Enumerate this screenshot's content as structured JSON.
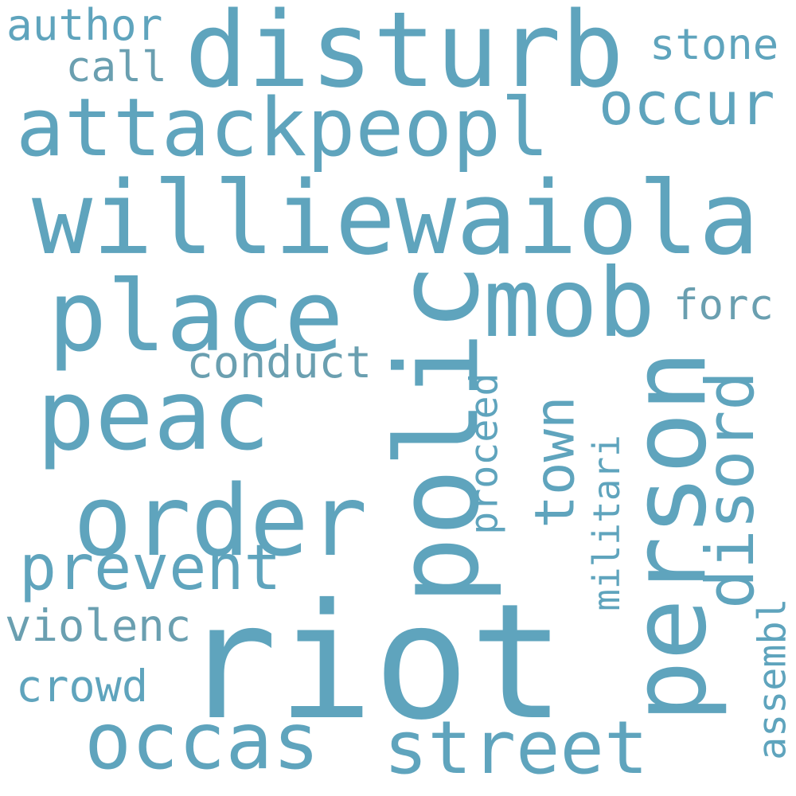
{
  "palette": {
    "primary": "#5fa4bd",
    "secondary": "#6a9fb0",
    "background": "#ffffff"
  },
  "words": [
    {
      "text": "riot",
      "orientation": "horizontal",
      "color": "#5fa4bd"
    },
    {
      "text": "williewaiola",
      "orientation": "horizontal",
      "color": "#5fa4bd"
    },
    {
      "text": "disturb",
      "orientation": "horizontal",
      "color": "#5fa4bd"
    },
    {
      "text": "polic",
      "orientation": "vertical",
      "color": "#5fa4bd"
    },
    {
      "text": "person",
      "orientation": "vertical",
      "color": "#5fa4bd"
    },
    {
      "text": "place",
      "orientation": "horizontal",
      "color": "#5fa4bd"
    },
    {
      "text": "mob",
      "orientation": "horizontal",
      "color": "#5fa4bd"
    },
    {
      "text": "attackpeopl",
      "orientation": "horizontal",
      "color": "#5fa4bd"
    },
    {
      "text": "peac",
      "orientation": "horizontal",
      "color": "#5fa4bd"
    },
    {
      "text": "order",
      "orientation": "horizontal",
      "color": "#5fa4bd"
    },
    {
      "text": "disord",
      "orientation": "vertical",
      "color": "#5fa4bd"
    },
    {
      "text": "occas",
      "orientation": "horizontal",
      "color": "#5fa4bd"
    },
    {
      "text": "street",
      "orientation": "horizontal",
      "color": "#5fa4bd"
    },
    {
      "text": "prevent",
      "orientation": "horizontal",
      "color": "#5fa4bd"
    },
    {
      "text": "occur",
      "orientation": "horizontal",
      "color": "#5fa4bd"
    },
    {
      "text": "town",
      "orientation": "vertical",
      "color": "#5fa4bd"
    },
    {
      "text": "conduct",
      "orientation": "horizontal",
      "color": "#6a9fb0"
    },
    {
      "text": "proceed",
      "orientation": "vertical",
      "color": "#5fa4bd"
    },
    {
      "text": "violenc",
      "orientation": "horizontal",
      "color": "#6a9fb0"
    },
    {
      "text": "crowd",
      "orientation": "horizontal",
      "color": "#5fa4bd"
    },
    {
      "text": "forc",
      "orientation": "horizontal",
      "color": "#6a9fb0"
    },
    {
      "text": "author",
      "orientation": "horizontal",
      "color": "#5fa4bd"
    },
    {
      "text": "stone",
      "orientation": "horizontal",
      "color": "#5fa4bd"
    },
    {
      "text": "call",
      "orientation": "horizontal",
      "color": "#6a9fb0"
    },
    {
      "text": "militari",
      "orientation": "vertical",
      "color": "#5fa4bd"
    },
    {
      "text": "assembl",
      "orientation": "vertical",
      "color": "#5fa4bd"
    }
  ]
}
